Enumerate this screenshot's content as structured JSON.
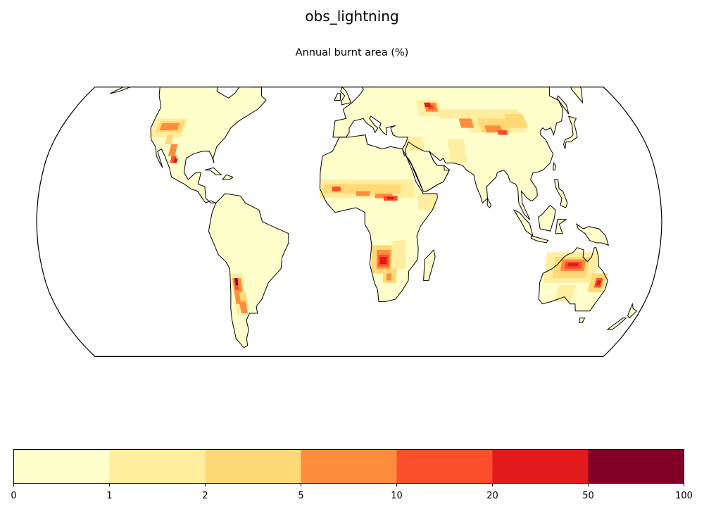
{
  "figure": {
    "suptitle": "obs_lightning",
    "subtitle": "Annual burnt area (%)"
  },
  "colorbar": {
    "boundaries": [
      "0",
      "1",
      "2",
      "5",
      "10",
      "20",
      "50",
      "100"
    ],
    "colors": [
      "#ffffcc",
      "#ffeda0",
      "#fed976",
      "#fd8d3c",
      "#fc4e2a",
      "#e31a1c",
      "#800026"
    ]
  },
  "map": {
    "projection": "robinson",
    "land_color": "#ffffcc",
    "ocean_color": "#ffffff",
    "coastline_color": "#000000"
  },
  "chart_data": {
    "type": "heatmap",
    "title": "Annual burnt area (%)",
    "suptitle": "obs_lightning",
    "colorbar_levels": [
      0,
      1,
      2,
      5,
      10,
      20,
      50,
      100
    ],
    "hotspots": [
      {
        "region": "Western United States",
        "level": "5-20"
      },
      {
        "region": "Northern Mexico",
        "level": "10-20"
      },
      {
        "region": "Sahel",
        "level": "1-20"
      },
      {
        "region": "Southern Africa (Angola/Zambia/Botswana)",
        "level": "10-50"
      },
      {
        "region": "Western Argentina / Andes foothills",
        "level": "5-50"
      },
      {
        "region": "Kazakhstan steppe",
        "level": "5-20"
      },
      {
        "region": "Mongolia / Northern China",
        "level": "5-20"
      },
      {
        "region": "Tibetan Plateau north edge",
        "level": "5-20"
      },
      {
        "region": "Northern Australia",
        "level": "10-20"
      },
      {
        "region": "Eastern Australia",
        "level": "5-20"
      }
    ]
  }
}
